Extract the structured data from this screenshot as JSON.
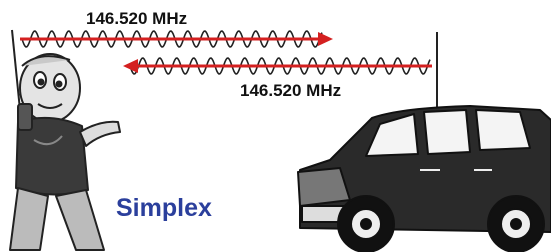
{
  "labels": {
    "top_frequency": "146.520 MHz",
    "bottom_frequency": "146.520 MHz",
    "title": "Simplex"
  }
}
